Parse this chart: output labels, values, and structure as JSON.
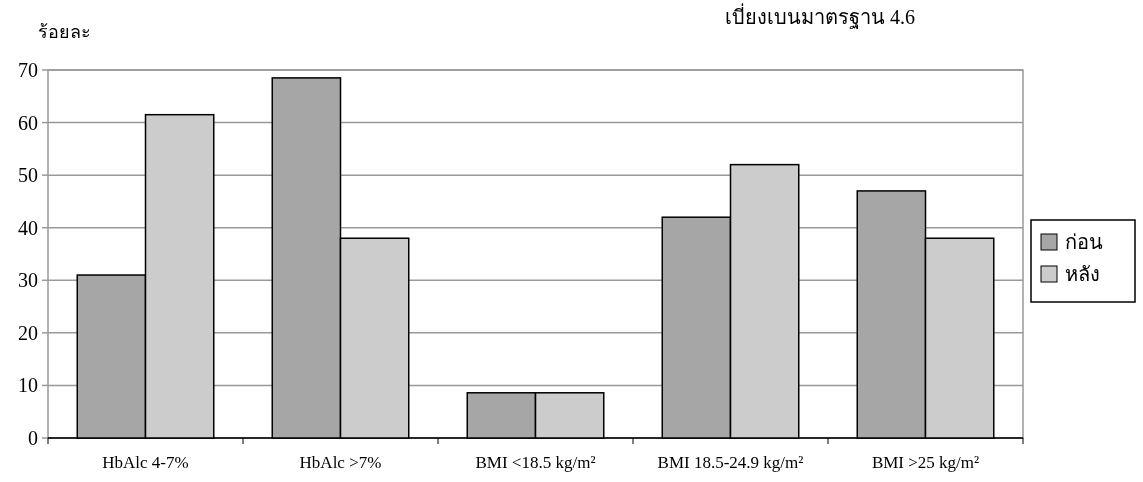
{
  "chart_data": {
    "type": "bar",
    "title": "เบี่ยงเบนมาตรฐาน 4.6",
    "ylabel": "ร้อยละ",
    "categories": [
      "HbAlc 4-7%",
      "HbAlc >7%",
      "BMI <18.5 kg/m²",
      "BMI 18.5-24.9 kg/m²",
      "BMI >25 kg/m²"
    ],
    "series": [
      {
        "name": "ก่อน",
        "color": "#a6a6a6",
        "values": [
          31,
          68.5,
          8.6,
          42,
          47
        ]
      },
      {
        "name": "หลัง",
        "color": "#cccccc",
        "values": [
          61.5,
          38,
          8.6,
          52,
          38
        ]
      }
    ],
    "ylim": [
      0,
      70
    ],
    "yticks": [
      0,
      10,
      20,
      30,
      40,
      50,
      60,
      70
    ],
    "grid": "y",
    "legend": "right"
  }
}
